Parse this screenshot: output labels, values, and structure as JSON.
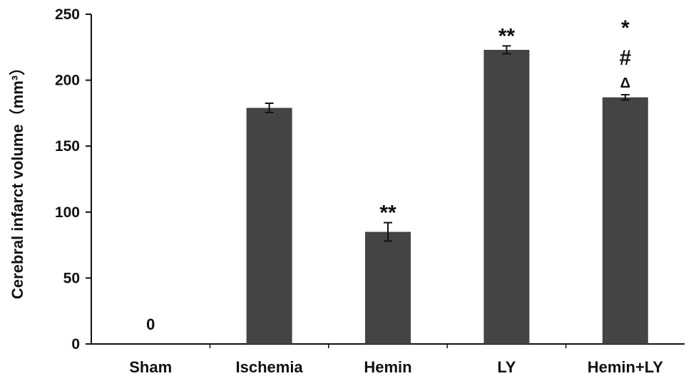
{
  "chart_data": {
    "type": "bar",
    "ylabel": "Cerebral infarct volume（mm³）",
    "xlabel": "",
    "ylim": [
      0,
      250
    ],
    "yticks": [
      0,
      50,
      100,
      150,
      200,
      250
    ],
    "categories": [
      "Sham",
      "Ischemia",
      "Hemin",
      "LY",
      "Hemin+LY"
    ],
    "values": [
      0,
      179,
      85,
      223,
      187
    ],
    "errors": [
      0,
      3.5,
      7,
      3,
      2
    ],
    "bar_color": "#444444",
    "grid": false,
    "legend": "none",
    "data_labels": [
      {
        "category": "Sham",
        "text": "0"
      }
    ],
    "annotations": [
      {
        "category": "Hemin",
        "lines": [
          "**"
        ]
      },
      {
        "category": "LY",
        "lines": [
          "**"
        ]
      },
      {
        "category": "Hemin+LY",
        "lines": [
          "*",
          "#",
          "Δ"
        ]
      }
    ]
  }
}
